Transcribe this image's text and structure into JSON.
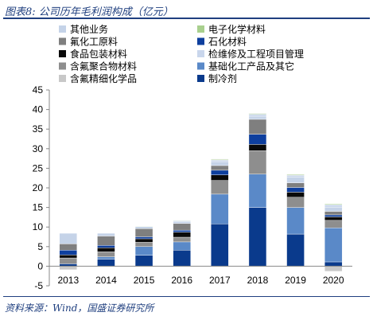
{
  "header": {
    "title": "图表8: 公司历年毛利润构成（亿元）"
  },
  "footer": {
    "source": "资料来源：Wind，国盛证券研究所"
  },
  "chart_data": {
    "type": "bar",
    "stacked": true,
    "title": "",
    "xlabel": "",
    "ylabel": "",
    "categories": [
      "2013",
      "2014",
      "2015",
      "2016",
      "2017",
      "2018",
      "2019",
      "2020"
    ],
    "ylim": [
      -5,
      45
    ],
    "yticks": [
      -5,
      0,
      5,
      10,
      15,
      20,
      25,
      30,
      35,
      40,
      45
    ],
    "grid": false,
    "legend_position": "top",
    "series": [
      {
        "name": "制冷剂",
        "color": "#0a3a8c",
        "values": [
          0.6,
          1.8,
          2.8,
          4.1,
          10.8,
          15.0,
          8.2,
          1.1
        ]
      },
      {
        "name": "基础化工产品及其它",
        "color": "#5a89c8",
        "values": [
          0.0,
          0.6,
          2.2,
          2.1,
          7.6,
          8.5,
          6.8,
          8.7
        ]
      },
      {
        "name": "含氟聚合物材料",
        "color": "#8e8e8e",
        "values": [
          1.5,
          1.3,
          1.1,
          1.2,
          3.5,
          6.0,
          2.6,
          1.9
        ]
      },
      {
        "name": "食品包装材料",
        "color": "#0a0a0a",
        "values": [
          0.8,
          1.0,
          0.9,
          1.3,
          1.4,
          1.6,
          1.3,
          0.9
        ]
      },
      {
        "name": "石化材料",
        "color": "#0e3f9e",
        "values": [
          1.2,
          0.6,
          0.5,
          0.5,
          1.2,
          2.6,
          1.2,
          0.5
        ]
      },
      {
        "name": "氟化工原料",
        "color": "#7f7f7f",
        "values": [
          1.6,
          2.4,
          2.1,
          1.7,
          1.2,
          3.8,
          1.2,
          0.9
        ]
      },
      {
        "name": "其他业务",
        "color": "#c5d3e8",
        "values": [
          2.7,
          0.7,
          0.5,
          0.4,
          1.0,
          0.8,
          1.4,
          1.1
        ]
      },
      {
        "name": "检维修及工程项目管理",
        "color": "#c9d6ec",
        "values": [
          0.0,
          0.0,
          0.0,
          0.3,
          0.4,
          0.5,
          0.5,
          0.6
        ]
      },
      {
        "name": "电子化学材料",
        "color": "#a9d08e",
        "values": [
          0.0,
          0.0,
          0.1,
          0.1,
          0.2,
          0.2,
          0.2,
          0.2
        ]
      },
      {
        "name": "含氟精细化学品",
        "color": "#c8c8c8",
        "values": [
          -0.9,
          0.0,
          0.0,
          0.0,
          0.1,
          0.1,
          0.1,
          -1.3
        ]
      }
    ],
    "legend": [
      {
        "name": "其他业务",
        "color": "#c5d3e8"
      },
      {
        "name": "电子化学材料",
        "color": "#a9d08e"
      },
      {
        "name": "氟化工原料",
        "color": "#7f7f7f"
      },
      {
        "name": "石化材料",
        "color": "#0e3f9e"
      },
      {
        "name": "食品包装材料",
        "color": "#0a0a0a"
      },
      {
        "name": "检维修及工程项目管理",
        "color": "#c9d6ec"
      },
      {
        "name": "含氟聚合物材料",
        "color": "#8e8e8e"
      },
      {
        "name": "基础化工产品及其它",
        "color": "#5a89c8"
      },
      {
        "name": "含氟精细化学品",
        "color": "#c8c8c8"
      },
      {
        "name": "制冷剂",
        "color": "#0a3a8c"
      }
    ]
  }
}
